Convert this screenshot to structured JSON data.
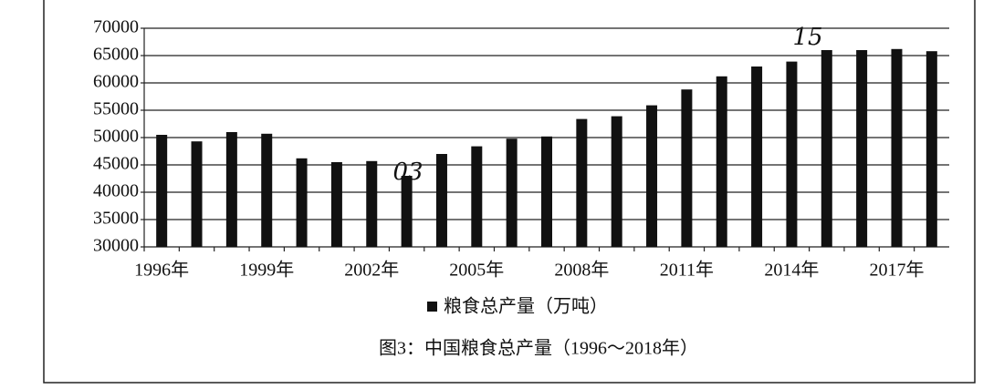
{
  "chart_data": {
    "type": "bar",
    "categories": [
      "1996年",
      null,
      null,
      "1999年",
      null,
      null,
      "2002年",
      null,
      null,
      "2005年",
      null,
      null,
      "2008年",
      null,
      null,
      "2011年",
      null,
      null,
      "2014年",
      null,
      null,
      "2017年",
      null
    ],
    "series": [
      {
        "name": "粮食总产量（万吨）",
        "color": "#111111",
        "values": [
          50500,
          49300,
          51000,
          50700,
          46200,
          45500,
          45700,
          43000,
          47000,
          48400,
          49800,
          50200,
          53400,
          53900,
          55900,
          58800,
          61200,
          63000,
          63900,
          66000,
          66000,
          66200,
          65800
        ]
      }
    ],
    "ylim": [
      30000,
      70000
    ],
    "yticks": [
      30000,
      35000,
      40000,
      45000,
      50000,
      55000,
      60000,
      65000,
      70000
    ],
    "grid": true,
    "caption": "图3：中国粮食总产量（1996～2018年）",
    "annotations": [
      "15",
      "03"
    ]
  }
}
